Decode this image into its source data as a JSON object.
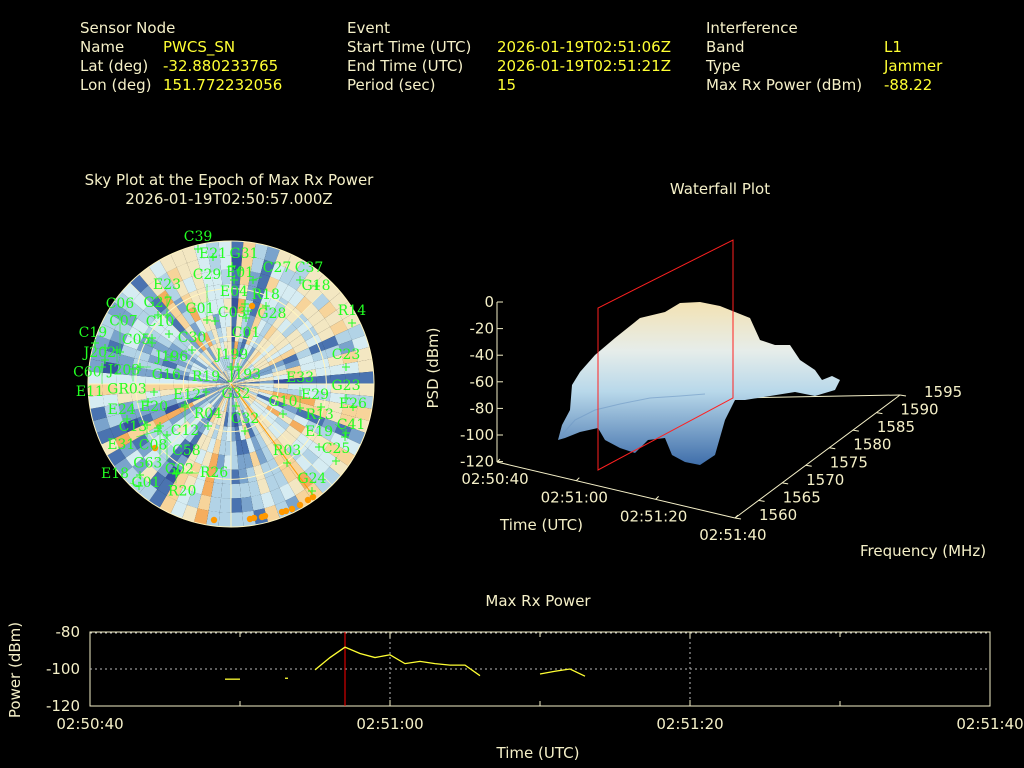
{
  "header": {
    "sensor": {
      "title": "Sensor Node",
      "name_label": "Name",
      "name": "PWCS_SN",
      "lat_label": "Lat (deg)",
      "lat": "-32.880233765",
      "lon_label": "Lon (deg)",
      "lon": "151.772232056"
    },
    "event": {
      "title": "Event",
      "start_label": "Start Time (UTC)",
      "start": "2026-01-19T02:51:06Z",
      "end_label": "End Time (UTC)",
      "end": "2026-01-19T02:51:21Z",
      "period_label": "Period (sec)",
      "period": "15"
    },
    "interference": {
      "title": "Interference",
      "band_label": "Band",
      "band": "L1",
      "type_label": "Type",
      "type": "Jammer",
      "power_label": "Max Rx Power (dBm)",
      "power": "-88.22"
    }
  },
  "colors": {
    "text": "#f5f0c8",
    "value": "#ffff33",
    "satellite": "#22ff22",
    "interference": "#ff9900",
    "epoch_marker": "#ff0000"
  },
  "chart_data": [
    {
      "type": "heatmap",
      "title": "Sky Plot at the Epoch of Max Rx Power",
      "subtitle": "2026-01-19T02:50:57.000Z",
      "satellites": [
        "C39",
        "E21",
        "G31",
        "E01",
        "E04",
        "C27",
        "C37",
        "G18",
        "R18",
        "G28",
        "C03",
        "C01",
        "R14",
        "C23",
        "G23",
        "E26",
        "E29",
        "E33",
        "G10",
        "C32",
        "G32",
        "R03",
        "G24",
        "C25",
        "E19",
        "C41",
        "R13",
        "J199",
        "J193",
        "R19",
        "E12",
        "R04",
        "C30",
        "J196",
        "G27",
        "E23",
        "G01",
        "C29",
        "C10",
        "C05",
        "C07",
        "C19",
        "J202",
        "J203",
        "C60",
        "C06",
        "G16",
        "GR03",
        "E11",
        "E20",
        "E24",
        "C13",
        "C12",
        "C08",
        "C58",
        "G63",
        "E31",
        "G02",
        "G01",
        "E18",
        "R20",
        "R26"
      ]
    },
    {
      "type": "area",
      "title": "Waterfall Plot",
      "xlabel": "Time (UTC)",
      "ylabel": "Frequency (MHz)",
      "zlabel": "PSD (dBm)",
      "x_ticks": [
        "02:50:40",
        "02:51:00",
        "02:51:20",
        "02:51:40"
      ],
      "y_ticks": [
        "1560",
        "1565",
        "1570",
        "1575",
        "1580",
        "1585",
        "1590",
        "1595"
      ],
      "z_ticks": [
        "0",
        "-20",
        "-40",
        "-60",
        "-80",
        "-100",
        "-120"
      ],
      "zlim": [
        -120,
        0
      ]
    },
    {
      "type": "line",
      "title": "Max Rx Power",
      "xlabel": "Time (UTC)",
      "ylabel": "Power (dBm)",
      "x_ticks": [
        "02:50:40",
        "02:51:00",
        "02:51:20",
        "02:51:40"
      ],
      "y_ticks": [
        "-80",
        "-100",
        "-120"
      ],
      "ylim": [
        -120,
        -80
      ],
      "xlim": [
        "02:50:40",
        "02:51:40"
      ],
      "epoch_marker": "02:50:57",
      "grid": true,
      "segments": [
        [
          [
            "02:50:49",
            -105.5
          ],
          [
            "02:50:50",
            -105.5
          ]
        ],
        [
          [
            "02:50:53",
            -105.0
          ],
          [
            "02:50:53.2",
            -105.0
          ]
        ],
        [
          [
            "02:50:55",
            -100.5
          ],
          [
            "02:50:56",
            -93.8
          ],
          [
            "02:50:57",
            -88.2
          ],
          [
            "02:50:58",
            -91.6
          ],
          [
            "02:50:59",
            -93.8
          ],
          [
            "02:51:00",
            -92.3
          ],
          [
            "02:51:01",
            -97.1
          ],
          [
            "02:51:02",
            -95.9
          ],
          [
            "02:51:03",
            -97.1
          ],
          [
            "02:51:04",
            -97.9
          ],
          [
            "02:51:05",
            -97.9
          ],
          [
            "02:51:06",
            -103.6
          ]
        ],
        [
          [
            "02:51:10",
            -102.7
          ],
          [
            "02:51:11",
            -101.2
          ],
          [
            "02:51:12",
            -100.0
          ],
          [
            "02:51:13",
            -103.9
          ]
        ]
      ]
    }
  ]
}
